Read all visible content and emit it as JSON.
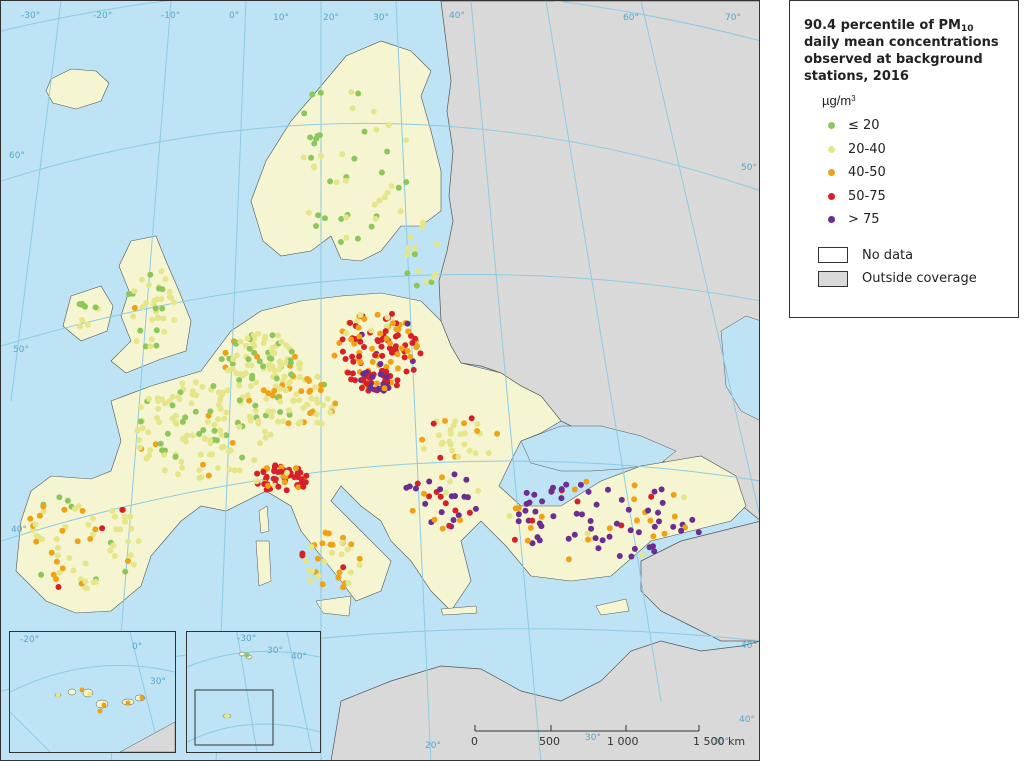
{
  "legend": {
    "title_pre": "90.4 percentile of PM",
    "title_sub": "10",
    "title_post": " daily mean concentrations observed at background stations, 2016",
    "unit_base": "µg/m",
    "unit_sup": "3",
    "classes": [
      {
        "label": "≤ 20",
        "color": "#8dc65b"
      },
      {
        "label": "20-40",
        "color": "#e5e68a"
      },
      {
        "label": "40-50",
        "color": "#f0a216"
      },
      {
        "label": "50-75",
        "color": "#d5202a"
      },
      {
        "label": "> 75",
        "color": "#6b2e8e"
      }
    ],
    "areas": [
      {
        "label": "No data",
        "color": "#ffffff"
      },
      {
        "label": "Outside coverage",
        "color": "#d9d9d9"
      }
    ]
  },
  "map": {
    "colors": {
      "sea": "#bde3f5",
      "land_covered": "#f6f5d1",
      "land_outside": "#d9d9d9",
      "graticule": "#8ccbe3"
    },
    "graticule_labels": [
      "-30°",
      "-20°",
      "-10°",
      "0°",
      "10°",
      "20°",
      "30°",
      "40°",
      "60°",
      "70°",
      "60°",
      "50°",
      "40°",
      "50°",
      "40°",
      "30°",
      "20°",
      "30°",
      "40°"
    ],
    "inset_labels": [
      "-20°",
      "0°",
      "30°",
      "-30°",
      "30°",
      "40°"
    ],
    "scale": {
      "ticks": [
        "0",
        "500",
        "1 000",
        "1 500 km"
      ]
    }
  }
}
